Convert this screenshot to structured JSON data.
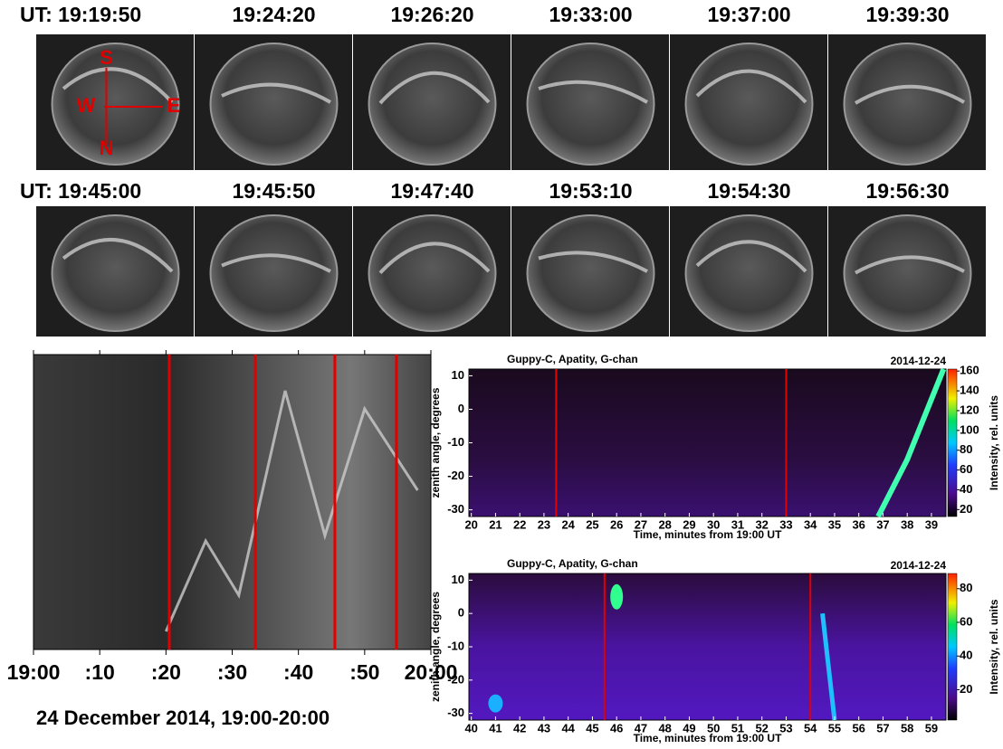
{
  "allsky": {
    "rows": [
      {
        "labels": [
          "UT: 19:19:50",
          "19:24:20",
          "19:26:20",
          "19:33:00",
          "19:37:00",
          "19:39:30"
        ]
      },
      {
        "labels": [
          "UT: 19:45:00",
          "19:45:50",
          "19:47:40",
          "19:53:10",
          "19:54:30",
          "19:56:30"
        ]
      }
    ],
    "directions": {
      "top": "S",
      "left": "W",
      "right": "E",
      "bottom": "N"
    }
  },
  "keogram": {
    "xlim": [
      0,
      60
    ],
    "xticks": [
      {
        "value": 0,
        "label": "19:00"
      },
      {
        "value": 10,
        "label": ":10"
      },
      {
        "value": 20,
        "label": ":20"
      },
      {
        "value": 30,
        "label": ":30"
      },
      {
        "value": 40,
        "label": ":40"
      },
      {
        "value": 50,
        "label": ":50"
      },
      {
        "value": 60,
        "label": "20:00"
      }
    ],
    "markers": [
      20.5,
      33.5,
      45.5,
      54.8
    ],
    "caption": "24 December 2014, 19:00-20:00"
  },
  "spectrograms": [
    {
      "title": "Guppy-C, Apatity, G-chan",
      "date": "2014-12-24",
      "xlabel": "Time, minutes from 19:00 UT",
      "ylabel": "zenith angle, degrees",
      "xlim": [
        19.9,
        39.6
      ],
      "xticks": [
        20,
        21,
        22,
        23,
        24,
        25,
        26,
        27,
        28,
        29,
        30,
        31,
        32,
        33,
        34,
        35,
        36,
        37,
        38,
        39
      ],
      "ylim": [
        -32,
        12
      ],
      "yticks": [
        10,
        0,
        -10,
        -20,
        -30
      ],
      "markers": [
        23.5,
        33
      ],
      "colorbar": {
        "label": "Intensity, rel. units",
        "lim": [
          13,
          162
        ],
        "ticks": [
          20,
          40,
          60,
          80,
          100,
          120,
          140,
          160
        ]
      }
    },
    {
      "title": "Guppy-C, Apatity, G-chan",
      "date": "2014-12-24",
      "xlabel": "Time, minutes from 19:00 UT",
      "ylabel": "zenith angle, degrees",
      "xlim": [
        39.9,
        59.6
      ],
      "xticks": [
        40,
        41,
        42,
        43,
        44,
        45,
        46,
        47,
        48,
        49,
        50,
        51,
        52,
        53,
        54,
        55,
        56,
        57,
        58,
        59
      ],
      "ylim": [
        -32,
        12
      ],
      "yticks": [
        10,
        0,
        -10,
        -20,
        -30
      ],
      "markers": [
        45.5,
        54
      ],
      "colorbar": {
        "label": "Intensity, rel. units",
        "lim": [
          2,
          89
        ],
        "ticks": [
          20,
          40,
          60,
          80
        ]
      }
    }
  ]
}
